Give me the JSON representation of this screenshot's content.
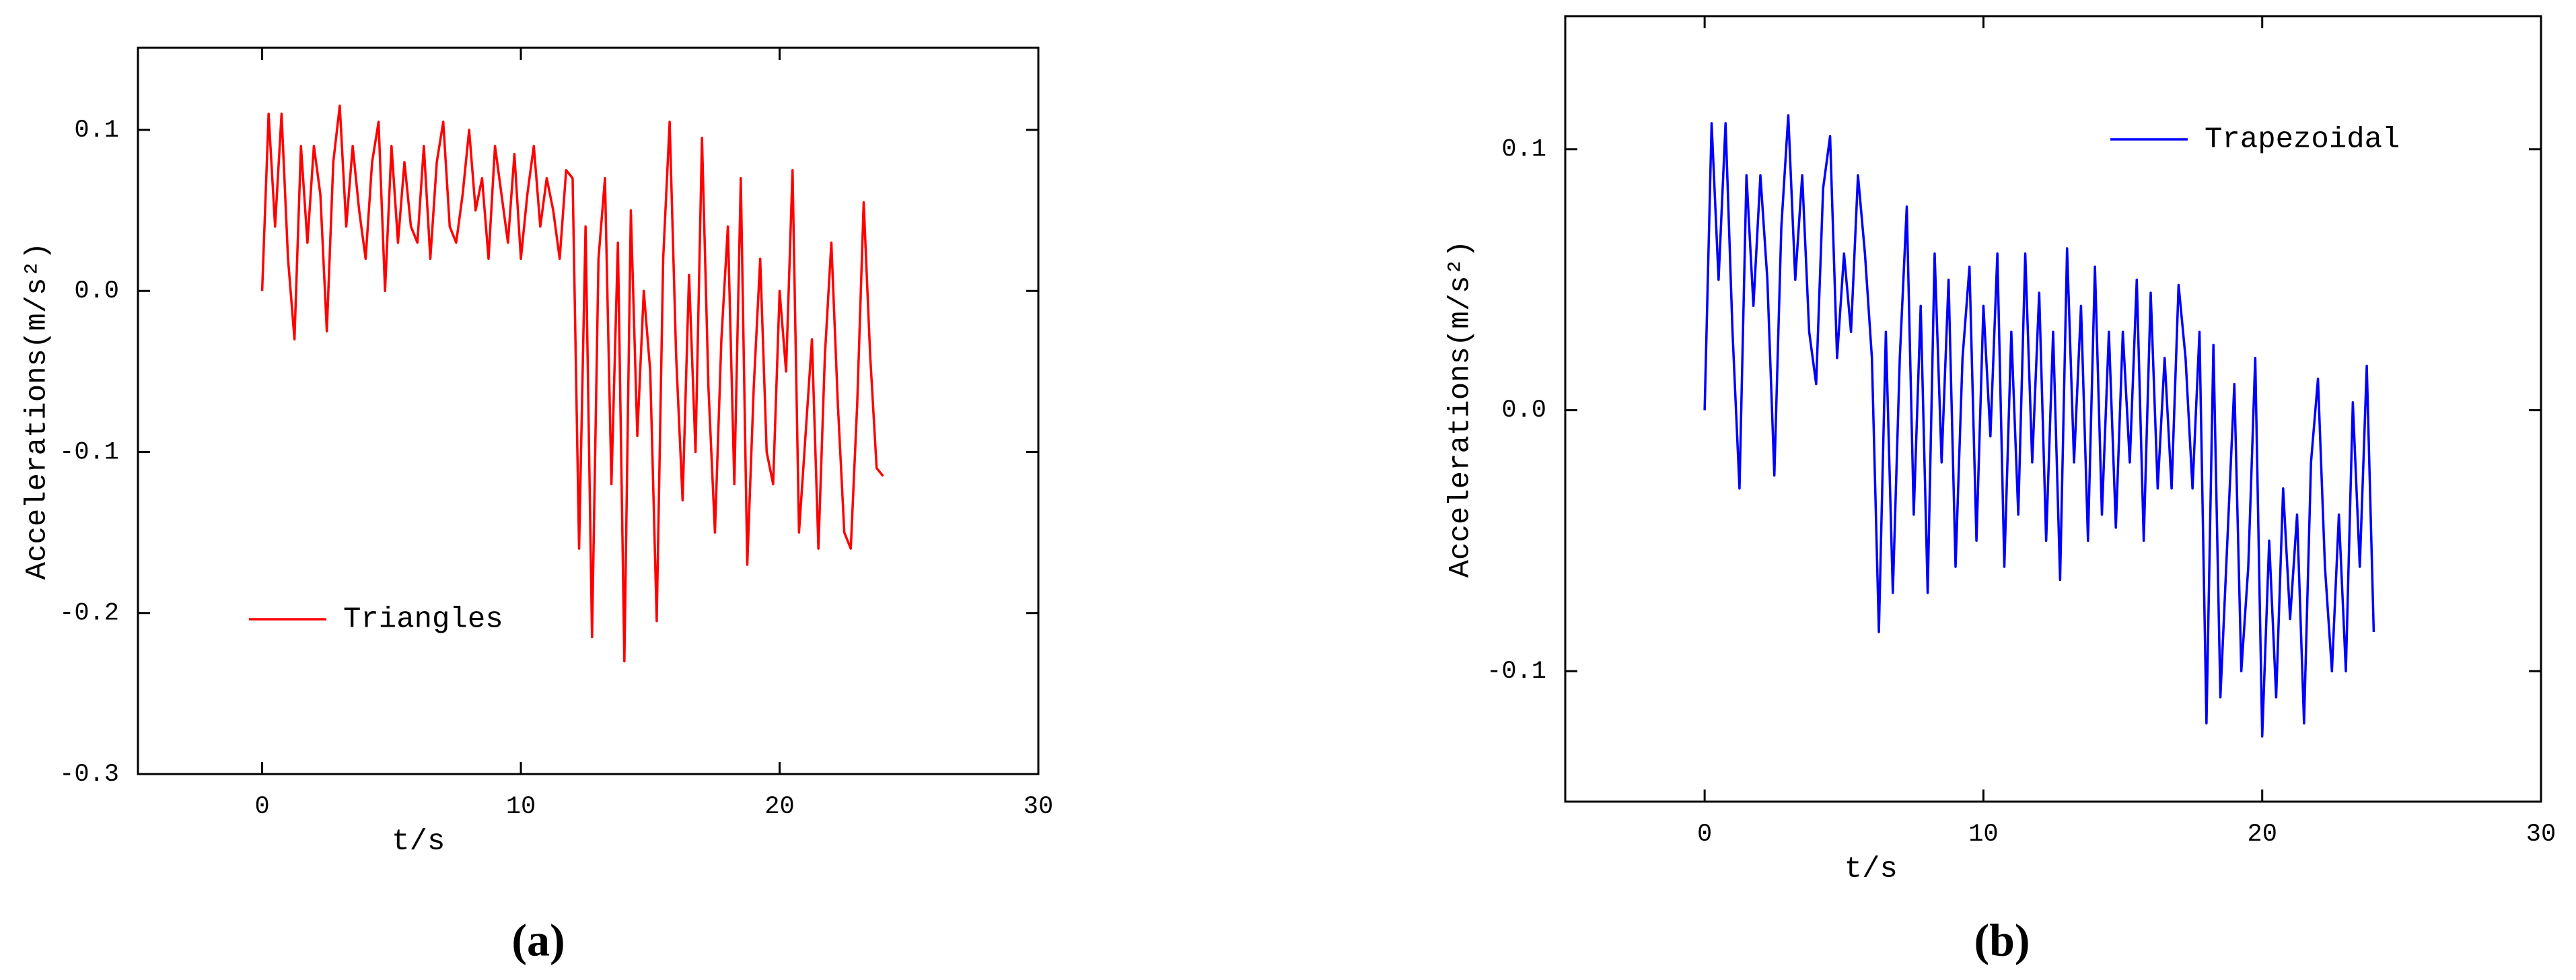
{
  "chart_data": [
    {
      "type": "line",
      "caption": "(a)",
      "xlabel": "t/s",
      "ylabel": "Accelerations(m/s²)",
      "xlim": [
        -4.8,
        30
      ],
      "xticks": [
        0,
        10,
        20,
        30
      ],
      "ylim": [
        -0.3,
        0.151
      ],
      "yticks": [
        -0.3,
        -0.2,
        -0.1,
        {
          "value": 0,
          "label": "0.0"
        },
        0.1
      ],
      "grid": false,
      "legend": "lower left",
      "x": [
        0,
        0.25,
        0.5,
        0.75,
        1,
        1.25,
        1.5,
        1.75,
        2,
        2.25,
        2.5,
        2.75,
        3,
        3.25,
        3.5,
        3.75,
        4,
        4.25,
        4.5,
        4.75,
        5,
        5.25,
        5.5,
        5.75,
        6,
        6.25,
        6.5,
        6.75,
        7,
        7.25,
        7.5,
        7.75,
        8,
        8.25,
        8.5,
        8.75,
        9,
        9.25,
        9.5,
        9.75,
        10,
        10.25,
        10.5,
        10.75,
        11,
        11.25,
        11.5,
        11.75,
        12,
        12.25,
        12.5,
        12.75,
        13,
        13.25,
        13.5,
        13.75,
        14,
        14.25,
        14.5,
        14.75,
        15,
        15.25,
        15.5,
        15.75,
        16,
        16.25,
        16.5,
        16.75,
        17,
        17.25,
        17.5,
        17.75,
        18,
        18.25,
        18.5,
        18.75,
        19,
        19.25,
        19.5,
        19.75,
        20,
        20.25,
        20.5,
        20.75,
        21,
        21.25,
        21.5,
        21.75,
        22,
        22.25,
        22.5,
        22.75,
        23,
        23.25,
        23.5,
        23.75,
        24
      ],
      "series": [
        {
          "name": "Triangles",
          "color": "#ff0000",
          "values": [
            0,
            0.11,
            0.04,
            0.11,
            0.02,
            -0.03,
            0.09,
            0.03,
            0.09,
            0.06,
            -0.025,
            0.08,
            0.115,
            0.04,
            0.09,
            0.05,
            0.02,
            0.08,
            0.105,
            0,
            0.09,
            0.03,
            0.08,
            0.04,
            0.03,
            0.09,
            0.02,
            0.08,
            0.105,
            0.04,
            0.03,
            0.06,
            0.1,
            0.05,
            0.07,
            0.02,
            0.09,
            0.06,
            0.03,
            0.085,
            0.02,
            0.06,
            0.09,
            0.04,
            0.07,
            0.05,
            0.02,
            0.075,
            0.07,
            -0.16,
            0.04,
            -0.215,
            0.02,
            0.07,
            -0.12,
            0.03,
            -0.23,
            0.05,
            -0.09,
            0,
            -0.05,
            -0.205,
            0.02,
            0.105,
            -0.04,
            -0.13,
            0.01,
            -0.1,
            0.095,
            -0.06,
            -0.15,
            -0.03,
            0.04,
            -0.12,
            0.07,
            -0.17,
            -0.06,
            0.02,
            -0.1,
            -0.12,
            0,
            -0.05,
            0.075,
            -0.15,
            -0.09,
            -0.03,
            -0.16,
            -0.04,
            0.03,
            -0.07,
            -0.15,
            -0.16,
            -0.07,
            0.055,
            -0.04,
            -0.11,
            -0.115
          ]
        }
      ]
    },
    {
      "type": "line",
      "caption": "(b)",
      "xlabel": "t/s",
      "ylabel": "Accelerations(m/s²)",
      "xlim": [
        -5,
        30
      ],
      "xticks": [
        0,
        10,
        20,
        30
      ],
      "ylim": [
        -0.15,
        0.151
      ],
      "yticks": [
        -0.1,
        {
          "value": 0,
          "label": "0.0"
        },
        0.1
      ],
      "grid": false,
      "legend": "upper right",
      "x": [
        0,
        0.25,
        0.5,
        0.75,
        1,
        1.25,
        1.5,
        1.75,
        2,
        2.25,
        2.5,
        2.75,
        3,
        3.25,
        3.5,
        3.75,
        4,
        4.25,
        4.5,
        4.75,
        5,
        5.25,
        5.5,
        5.75,
        6,
        6.25,
        6.5,
        6.75,
        7,
        7.25,
        7.5,
        7.75,
        8,
        8.25,
        8.5,
        8.75,
        9,
        9.25,
        9.5,
        9.75,
        10,
        10.25,
        10.5,
        10.75,
        11,
        11.25,
        11.5,
        11.75,
        12,
        12.25,
        12.5,
        12.75,
        13,
        13.25,
        13.5,
        13.75,
        14,
        14.25,
        14.5,
        14.75,
        15,
        15.25,
        15.5,
        15.75,
        16,
        16.25,
        16.5,
        16.75,
        17,
        17.25,
        17.5,
        17.75,
        18,
        18.25,
        18.5,
        18.75,
        19,
        19.25,
        19.5,
        19.75,
        20,
        20.25,
        20.5,
        20.75,
        21,
        21.25,
        21.5,
        21.75,
        22,
        22.25,
        22.5,
        22.75,
        23,
        23.25,
        23.5,
        23.75,
        24
      ],
      "series": [
        {
          "name": "Trapezoidal",
          "color": "#0000ff",
          "values": [
            0,
            0.11,
            0.05,
            0.11,
            0.03,
            -0.03,
            0.09,
            0.04,
            0.09,
            0.05,
            -0.025,
            0.07,
            0.113,
            0.05,
            0.09,
            0.03,
            0.01,
            0.085,
            0.105,
            0.02,
            0.06,
            0.03,
            0.09,
            0.06,
            0.02,
            -0.085,
            0.03,
            -0.07,
            0.02,
            0.078,
            -0.04,
            0.04,
            -0.07,
            0.06,
            -0.02,
            0.05,
            -0.06,
            0.02,
            0.055,
            -0.05,
            0.04,
            -0.01,
            0.06,
            -0.06,
            0.03,
            -0.04,
            0.06,
            -0.02,
            0.045,
            -0.05,
            0.03,
            -0.065,
            0.062,
            -0.02,
            0.04,
            -0.05,
            0.055,
            -0.04,
            0.03,
            -0.045,
            0.03,
            -0.02,
            0.05,
            -0.05,
            0.045,
            -0.03,
            0.02,
            -0.03,
            0.048,
            0.02,
            -0.03,
            0.03,
            -0.12,
            0.025,
            -0.11,
            -0.05,
            0.01,
            -0.1,
            -0.06,
            0.02,
            -0.125,
            -0.05,
            -0.11,
            -0.03,
            -0.08,
            -0.04,
            -0.12,
            -0.02,
            0.012,
            -0.06,
            -0.1,
            -0.04,
            -0.1,
            0.003,
            -0.06,
            0.017,
            -0.085
          ]
        }
      ]
    }
  ]
}
